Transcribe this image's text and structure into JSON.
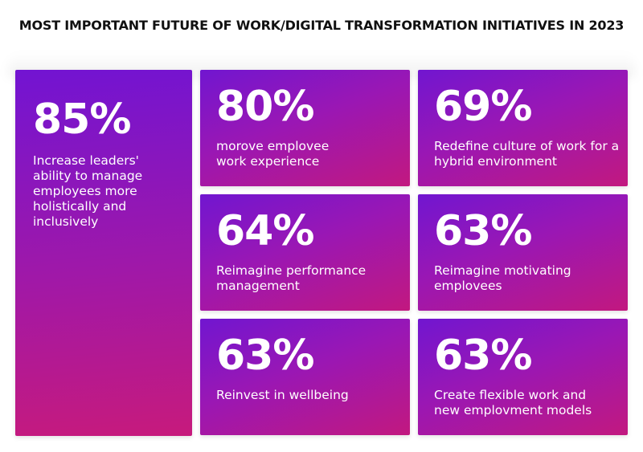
{
  "title": "MOST IMPORTANT FUTURE OF WORK/DIGITAL TRANSFORMATION INITIATIVES IN 2023",
  "chart_data": {
    "type": "table",
    "title": "MOST IMPORTANT FUTURE OF WORK/DIGITAL TRANSFORMATION INITIATIVES IN 2023",
    "items": [
      {
        "value": 85,
        "label": "85%",
        "description": "Increase leaders' ability to manage employees more holistically and inclusively"
      },
      {
        "value": 80,
        "label": "80%",
        "description": "morove emplovee work experience"
      },
      {
        "value": 69,
        "label": "69%",
        "description": "Redefine culture of work for a hybrid environment"
      },
      {
        "value": 64,
        "label": "64%",
        "description": "Reimagine performance management"
      },
      {
        "value": 63,
        "label": "63%",
        "description": "Reimagine motivating emplovees"
      },
      {
        "value": 63,
        "label": "63%",
        "description": "Reinvest in wellbeing"
      },
      {
        "value": 63,
        "label": "63%",
        "description": "Create flexible work and new emplovment models"
      }
    ]
  },
  "colors": {
    "gradient_top": "#7116d0",
    "gradient_bottom": "#c2187f",
    "title_text": "#111111"
  }
}
